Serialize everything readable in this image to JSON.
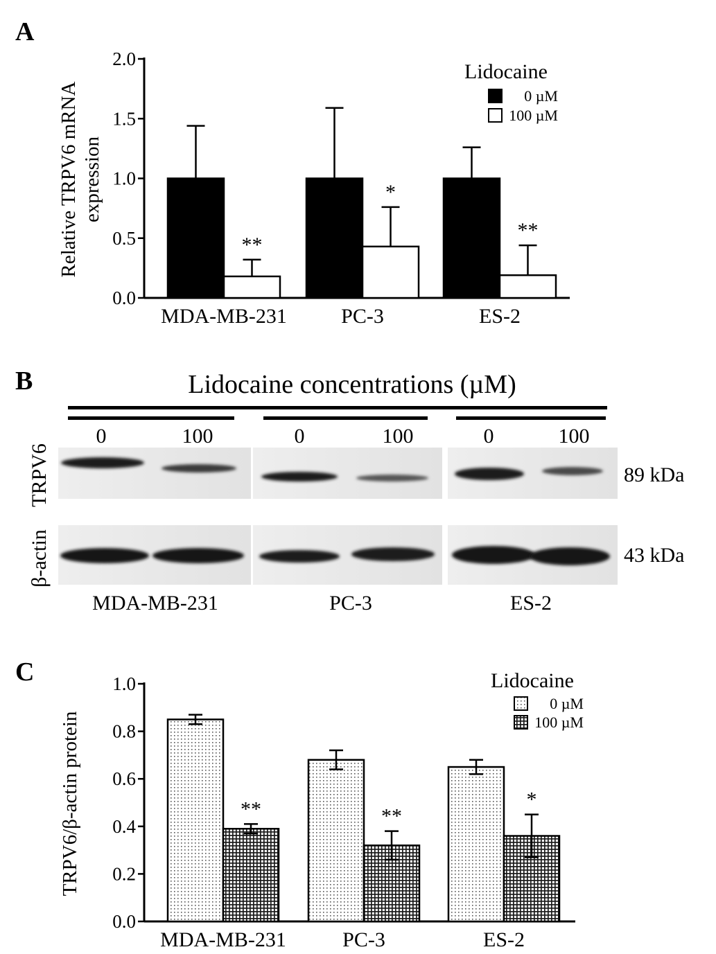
{
  "panel_a": {
    "letter": "A",
    "ylabel_line1": "Relative TRPV6 mRNA",
    "ylabel_line2": "expression",
    "legend_title": "Lidocaine",
    "ticks": [
      "0.0",
      "0.5",
      "1.0",
      "1.5",
      "2.0"
    ]
  },
  "panel_b": {
    "letter": "B",
    "title": "Lidocaine concentrations (µM)",
    "lane_labels": [
      "0",
      "100",
      "0",
      "100",
      "0",
      "100"
    ],
    "row1_label": "TRPV6",
    "row2_label": "β-actin",
    "size1": "89 kDa",
    "size2": "43 kDa",
    "cell_lines": [
      "MDA-MB-231",
      "PC-3",
      "ES-2"
    ]
  },
  "panel_c": {
    "letter": "C",
    "ylabel": "TRPV6/β-actin protein",
    "legend_title": "Lidocaine",
    "ticks": [
      "0.0",
      "0.2",
      "0.4",
      "0.6",
      "0.8",
      "1.0"
    ]
  },
  "chart_data": [
    {
      "panel": "A",
      "type": "bar",
      "categories": [
        "MDA-MB-231",
        "PC-3",
        "ES-2"
      ],
      "series": [
        {
          "name": "0 µM",
          "values": [
            1.0,
            1.0,
            1.0
          ],
          "error": [
            0.44,
            0.59,
            0.26
          ],
          "fill": "#000000"
        },
        {
          "name": "100 µM",
          "values": [
            0.18,
            0.43,
            0.19
          ],
          "error": [
            0.14,
            0.33,
            0.25
          ],
          "fill": "#ffffff"
        }
      ],
      "significance": [
        "**",
        "*",
        "**"
      ],
      "ylabel": "Relative TRPV6 mRNA expression",
      "ylim": [
        0,
        2.0
      ],
      "legend_title": "Lidocaine",
      "legend_position": "top-right",
      "grid": false
    },
    {
      "panel": "C",
      "type": "bar",
      "categories": [
        "MDA-MB-231",
        "PC-3",
        "ES-2"
      ],
      "series": [
        {
          "name": "0 µM",
          "values": [
            0.85,
            0.68,
            0.65
          ],
          "error": [
            0.02,
            0.04,
            0.03
          ],
          "fill": "dotted"
        },
        {
          "name": "100 µM",
          "values": [
            0.39,
            0.32,
            0.36
          ],
          "error": [
            0.02,
            0.06,
            0.09
          ],
          "fill": "crosshatch"
        }
      ],
      "significance": [
        "**",
        "**",
        "*"
      ],
      "ylabel": "TRPV6/β-actin protein",
      "ylim": [
        0,
        1.0
      ],
      "legend_title": "Lidocaine",
      "legend_position": "top-right",
      "grid": false
    }
  ]
}
